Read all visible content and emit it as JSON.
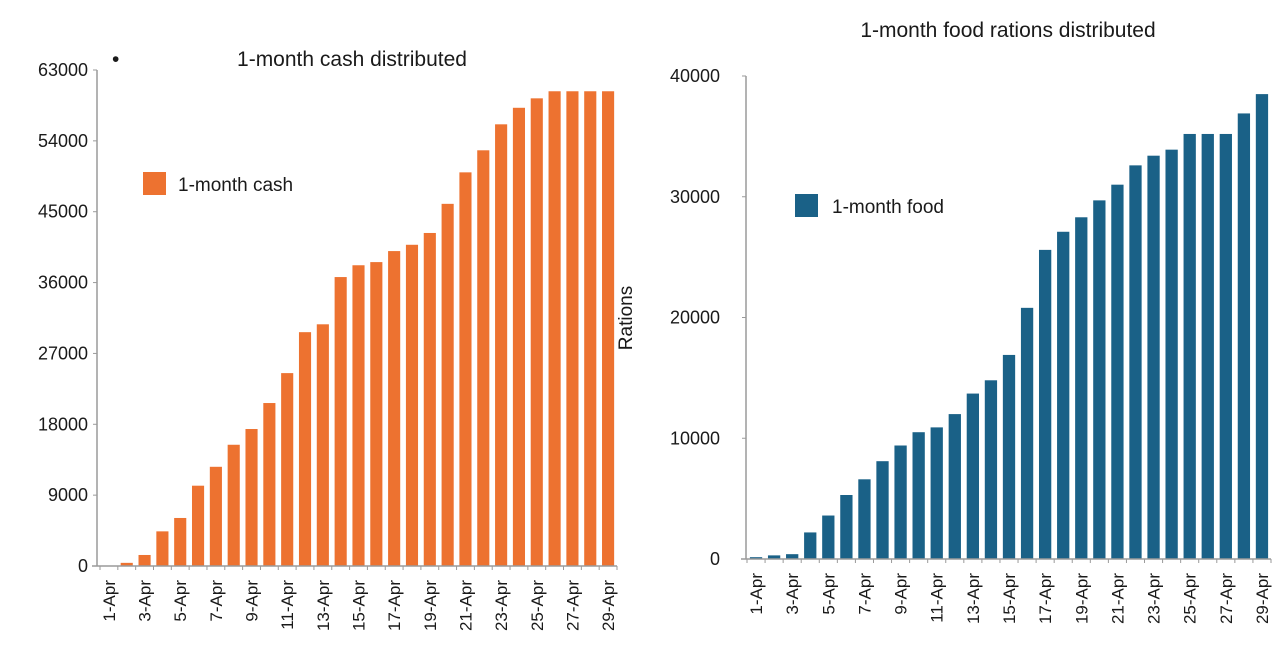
{
  "stray_bullet": "•",
  "chart_data": [
    {
      "type": "bar",
      "title": "1-month cash distributed",
      "xlabel": "",
      "ylabel": "",
      "ylim": [
        0,
        63000
      ],
      "yticks": [
        0,
        9000,
        18000,
        27000,
        36000,
        45000,
        54000,
        63000
      ],
      "ytick_labels": [
        "0",
        "9000",
        "18000",
        "27000",
        "36000",
        "45000",
        "54000",
        "63000"
      ],
      "grid": false,
      "legend": {
        "position": "upper-left",
        "entries": [
          {
            "label": "1-month cash",
            "color": "#ED7230"
          }
        ]
      },
      "categories": [
        "1-Apr",
        "2-Apr",
        "3-Apr",
        "4-Apr",
        "5-Apr",
        "6-Apr",
        "7-Apr",
        "8-Apr",
        "9-Apr",
        "10-Apr",
        "11-Apr",
        "12-Apr",
        "13-Apr",
        "14-Apr",
        "15-Apr",
        "16-Apr",
        "17-Apr",
        "18-Apr",
        "19-Apr",
        "20-Apr",
        "21-Apr",
        "22-Apr",
        "23-Apr",
        "24-Apr",
        "25-Apr",
        "26-Apr",
        "27-Apr",
        "28-Apr",
        "29-Apr"
      ],
      "xtick_labels": [
        "1-Apr",
        "3-Apr",
        "5-Apr",
        "7-Apr",
        "9-Apr",
        "11-Apr",
        "13-Apr",
        "15-Apr",
        "17-Apr",
        "19-Apr",
        "21-Apr",
        "23-Apr",
        "25-Apr",
        "27-Apr",
        "29-Apr"
      ],
      "series": [
        {
          "name": "1-month cash",
          "color": "#ED7230",
          "values": [
            0,
            400,
            1400,
            4400,
            6100,
            10200,
            12600,
            15400,
            17400,
            20700,
            24500,
            29700,
            30700,
            36700,
            38200,
            38600,
            40000,
            40800,
            42300,
            46000,
            50000,
            52800,
            56100,
            58200,
            59400,
            60300,
            60300,
            60300,
            60300
          ]
        }
      ]
    },
    {
      "type": "bar",
      "title": "1-month food rations distributed",
      "xlabel": "",
      "ylabel": "Rations",
      "ylim": [
        0,
        40000
      ],
      "yticks": [
        0,
        10000,
        20000,
        30000,
        40000
      ],
      "ytick_labels": [
        "0",
        "10000",
        "20000",
        "30000",
        "40000"
      ],
      "grid": false,
      "legend": {
        "position": "upper-left",
        "entries": [
          {
            "label": "1-month food",
            "color": "#1A6187"
          }
        ]
      },
      "categories": [
        "1-Apr",
        "2-Apr",
        "3-Apr",
        "4-Apr",
        "5-Apr",
        "6-Apr",
        "7-Apr",
        "8-Apr",
        "9-Apr",
        "10-Apr",
        "11-Apr",
        "12-Apr",
        "13-Apr",
        "14-Apr",
        "15-Apr",
        "16-Apr",
        "17-Apr",
        "18-Apr",
        "19-Apr",
        "20-Apr",
        "21-Apr",
        "22-Apr",
        "23-Apr",
        "24-Apr",
        "25-Apr",
        "26-Apr",
        "27-Apr",
        "28-Apr",
        "29-Apr"
      ],
      "xtick_labels": [
        "1-Apr",
        "3-Apr",
        "5-Apr",
        "7-Apr",
        "9-Apr",
        "11-Apr",
        "13-Apr",
        "15-Apr",
        "17-Apr",
        "19-Apr",
        "21-Apr",
        "23-Apr",
        "25-Apr",
        "27-Apr",
        "29-Apr"
      ],
      "series": [
        {
          "name": "1-month food",
          "color": "#1A6187",
          "values": [
            150,
            300,
            400,
            2200,
            3600,
            5300,
            6600,
            8100,
            9400,
            10500,
            10900,
            12000,
            13700,
            14800,
            16900,
            20800,
            25600,
            27100,
            28300,
            29700,
            31000,
            32600,
            33400,
            33900,
            35200,
            35200,
            35200,
            36900,
            38500
          ]
        }
      ]
    }
  ]
}
